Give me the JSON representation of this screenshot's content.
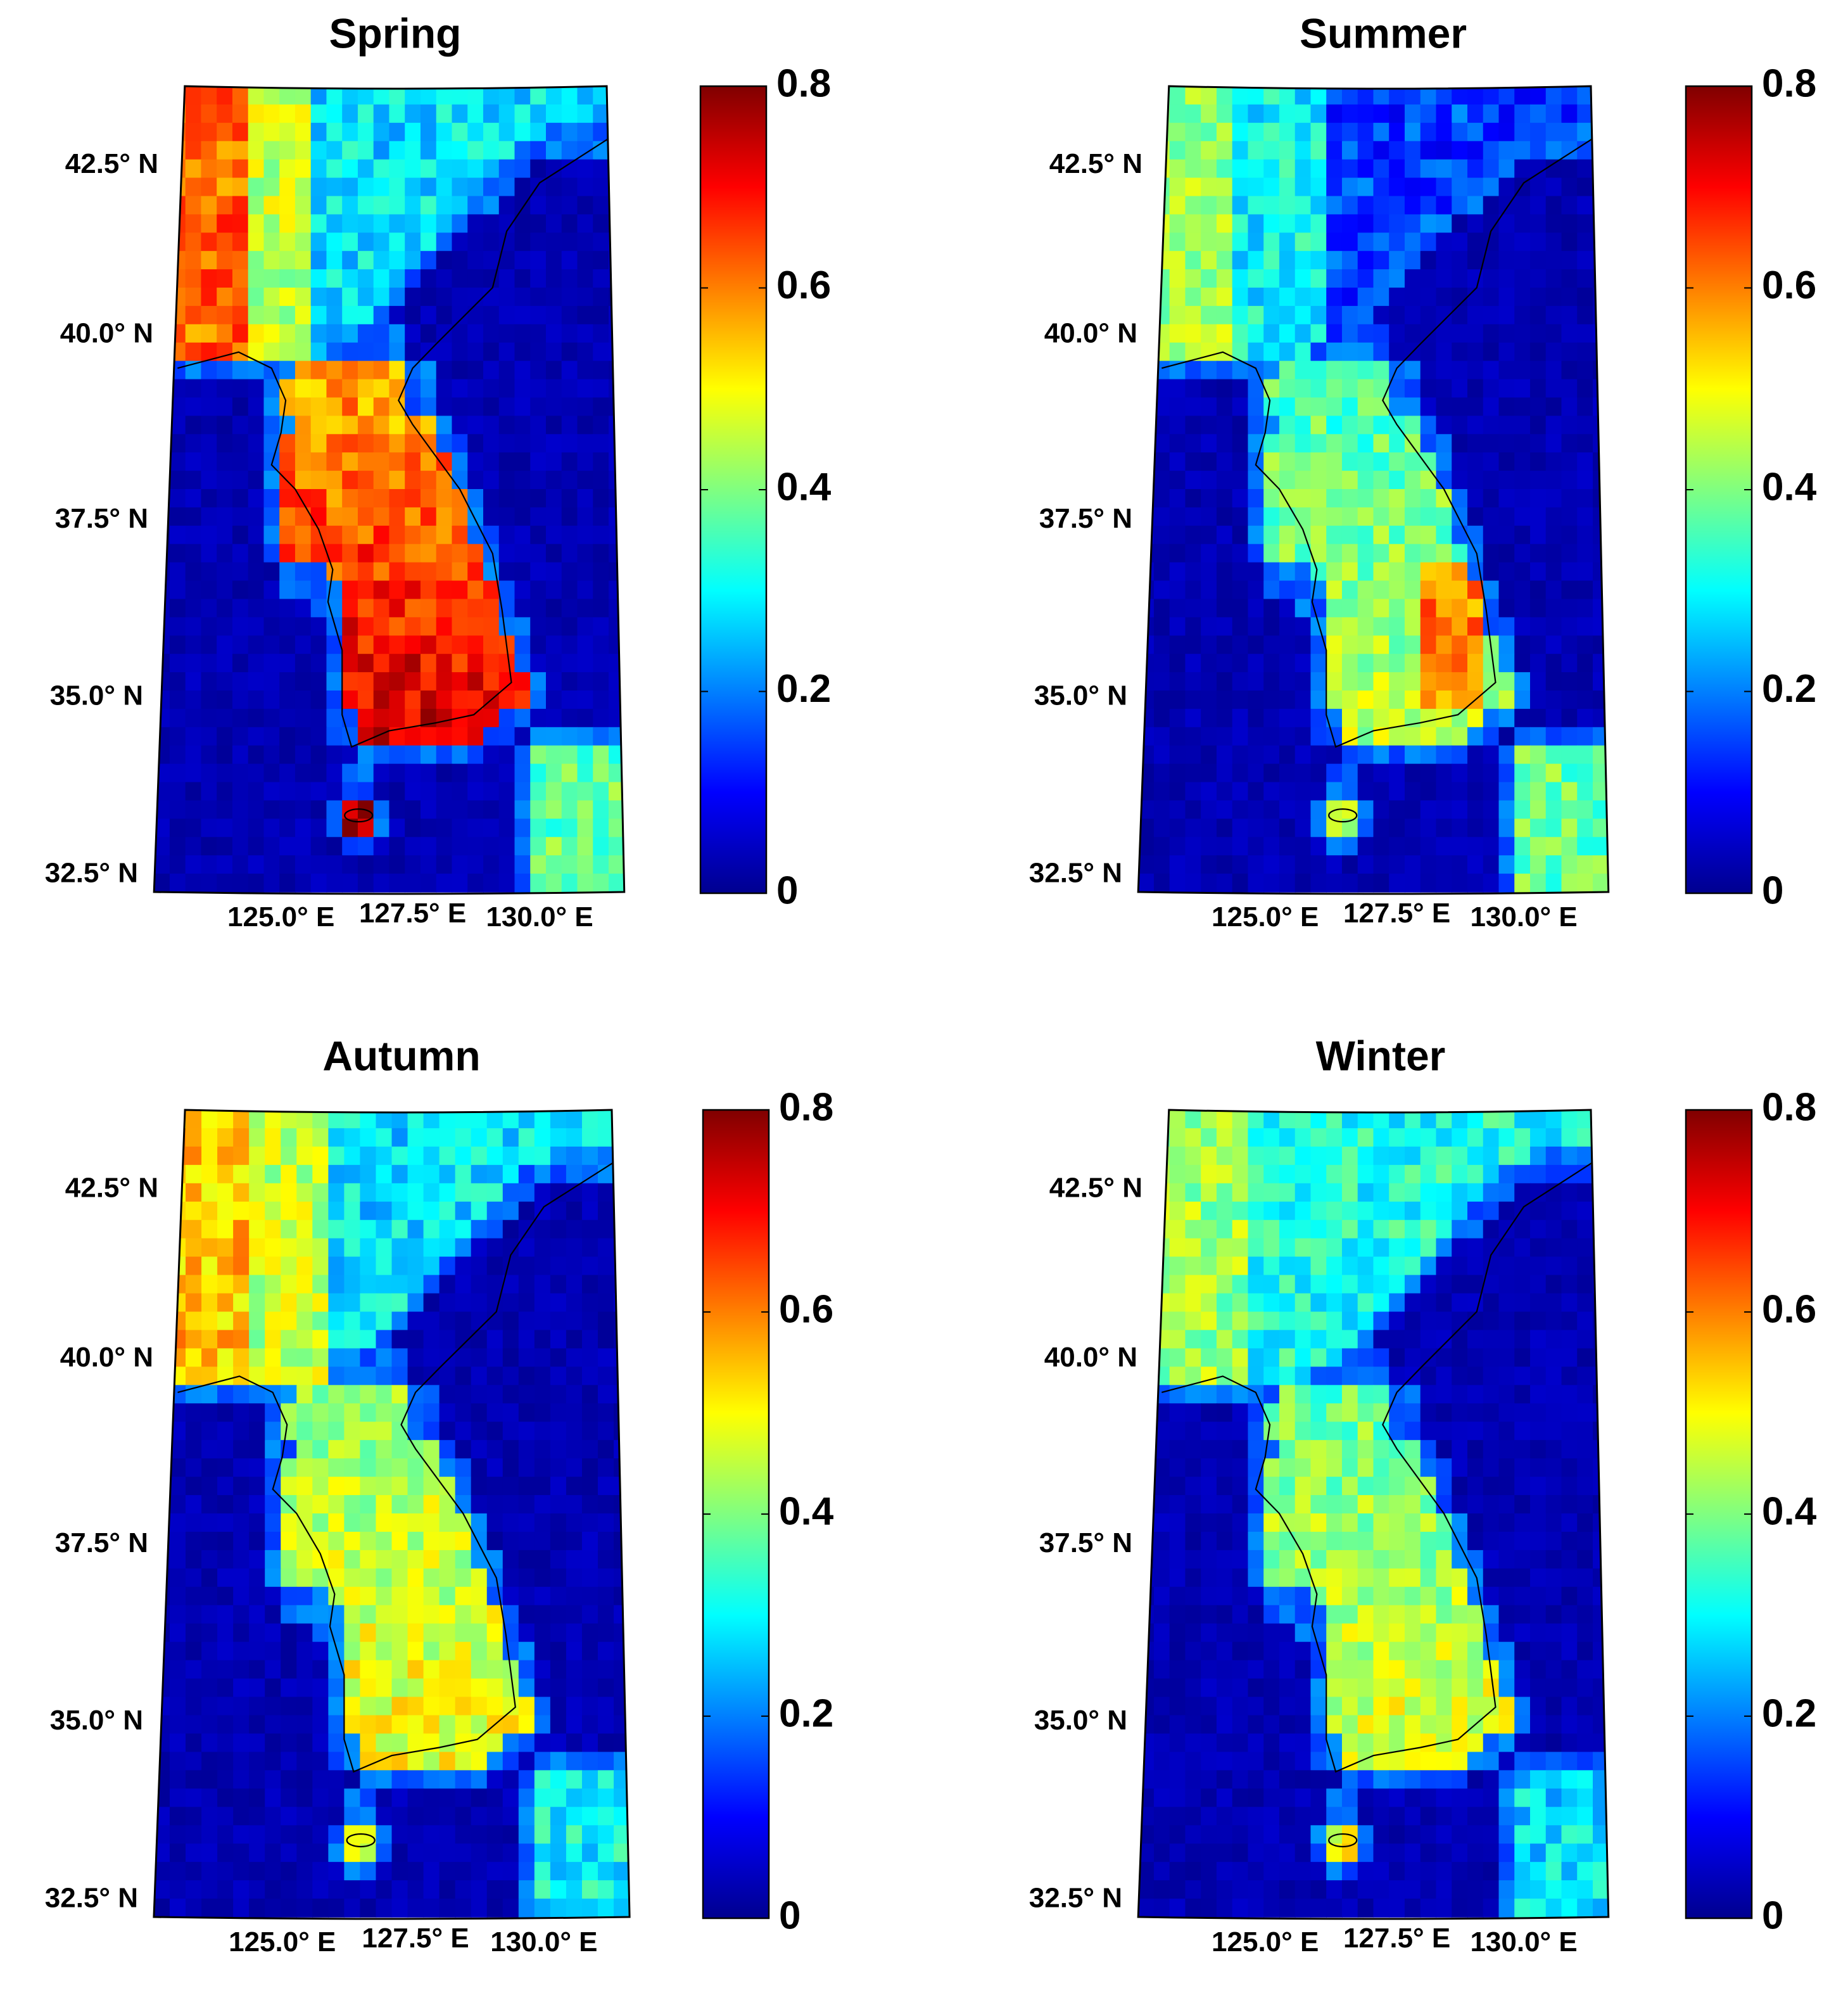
{
  "panels": [
    {
      "title": "Spring",
      "id": "spring"
    },
    {
      "title": "Summer",
      "id": "summer"
    },
    {
      "title": "Autumn",
      "id": "autumn"
    },
    {
      "title": "Winter",
      "id": "winter"
    }
  ],
  "latitude_labels": [
    "42.5° N",
    "40.0° N",
    "37.5° N",
    "35.0° N",
    "32.5° N"
  ],
  "longitude_labels": [
    "125.0° E",
    "127.5° E",
    "130.0° E"
  ],
  "colorbar": {
    "ticks": [
      "0.8",
      "0.6",
      "0.4",
      "0.2",
      "0"
    ],
    "range": [
      0,
      0.8
    ],
    "colormap": "jet",
    "colors": [
      "#00008f",
      "#0000ff",
      "#00ffff",
      "#80ff80",
      "#ffff00",
      "#ff8000",
      "#ff0000",
      "#800000"
    ]
  },
  "map": {
    "lat_range": [
      32.5,
      43.5
    ],
    "lon_range": [
      123.5,
      131.5
    ],
    "land_color_scale": "jet 0–0.8"
  }
}
